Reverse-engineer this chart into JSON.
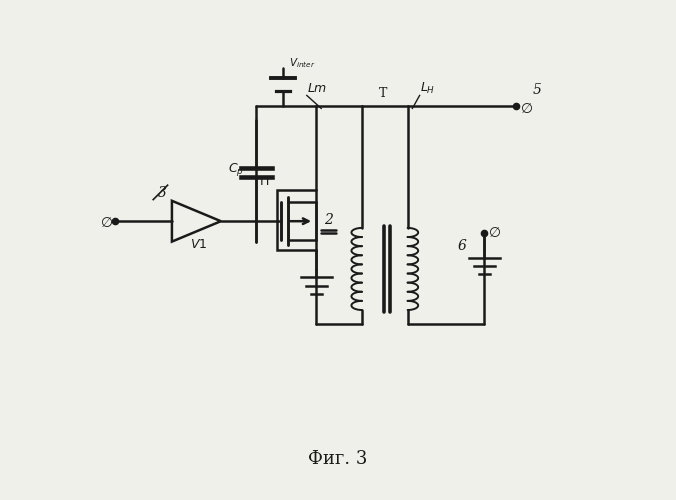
{
  "bg_color": "#f0f0eb",
  "line_color": "#1a1a1a",
  "lw": 1.8,
  "fig_width": 6.76,
  "fig_height": 5.0,
  "title": "Фиг. 3",
  "title_fontsize": 13
}
